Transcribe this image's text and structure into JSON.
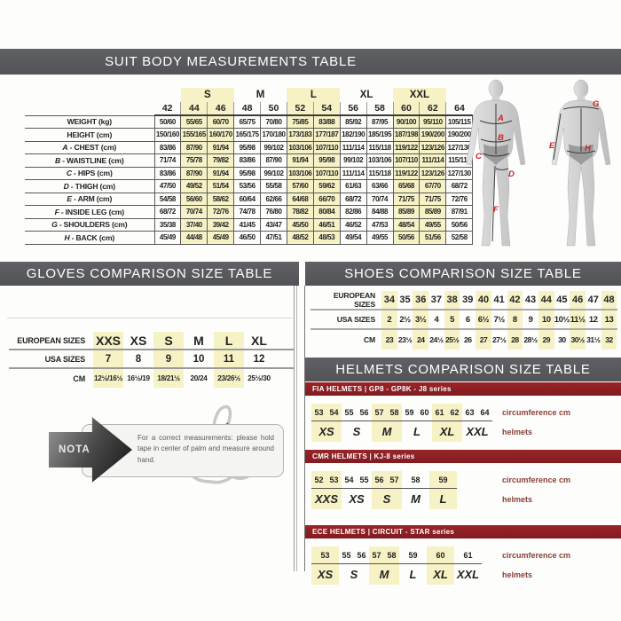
{
  "colors": {
    "header_bar_gray": "#58595b",
    "highlight_yellow": "#f6f2c5",
    "banner_red": "#8e2125",
    "figure_letter_red": "#cc2026",
    "helmet_label_maroon": "#8a4038"
  },
  "suit": {
    "title": "SUIT BODY MEASUREMENTS TABLE",
    "groups": [
      {
        "label": "",
        "span": 1,
        "highlight": false
      },
      {
        "label": "S",
        "span": 2,
        "highlight": true
      },
      {
        "label": "M",
        "span": 2,
        "highlight": false
      },
      {
        "label": "L",
        "span": 2,
        "highlight": true
      },
      {
        "label": "XL",
        "span": 2,
        "highlight": false
      },
      {
        "label": "XXL",
        "span": 2,
        "highlight": true
      },
      {
        "label": "",
        "span": 1,
        "highlight": false
      }
    ],
    "sizes": [
      "42",
      "44",
      "46",
      "48",
      "50",
      "52",
      "54",
      "56",
      "58",
      "60",
      "62",
      "64"
    ],
    "highlight_columns": [
      1,
      2,
      5,
      6,
      9,
      10
    ],
    "rows": [
      {
        "prefix": "",
        "label": "WEIGHT (kg)",
        "values": [
          "50/60",
          "55/65",
          "60/70",
          "65/75",
          "70/80",
          "75/85",
          "83/88",
          "85/92",
          "87/95",
          "90/100",
          "95/110",
          "105/115"
        ]
      },
      {
        "prefix": "",
        "label": "HEIGHT (cm)",
        "values": [
          "150/160",
          "155/165",
          "160/170",
          "165/175",
          "170/180",
          "173/183",
          "177/187",
          "182/190",
          "185/195",
          "187/198",
          "190/200",
          "190/200"
        ]
      },
      {
        "prefix": "A",
        "label": "CHEST (cm)",
        "values": [
          "83/86",
          "87/90",
          "91/94",
          "95/98",
          "99/102",
          "103/106",
          "107/110",
          "111/114",
          "115/118",
          "119/122",
          "123/126",
          "127/130"
        ]
      },
      {
        "prefix": "B",
        "label": "WAISTLINE (cm)",
        "values": [
          "71/74",
          "75/78",
          "79/82",
          "83/86",
          "87/90",
          "91/94",
          "95/98",
          "99/102",
          "103/106",
          "107/110",
          "111/114",
          "115/119"
        ]
      },
      {
        "prefix": "C",
        "label": "HIPS (cm)",
        "values": [
          "83/86",
          "87/90",
          "91/94",
          "95/98",
          "99/102",
          "103/106",
          "107/110",
          "111/114",
          "115/118",
          "119/122",
          "123/126",
          "127/130"
        ]
      },
      {
        "prefix": "D",
        "label": "THIGH (cm)",
        "values": [
          "47/50",
          "49/52",
          "51/54",
          "53/56",
          "55/58",
          "57/60",
          "59/62",
          "61/63",
          "63/66",
          "65/68",
          "67/70",
          "68/72"
        ]
      },
      {
        "prefix": "E",
        "label": "ARM (cm)",
        "values": [
          "54/58",
          "56/60",
          "58/62",
          "60/64",
          "62/66",
          "64/68",
          "66/70",
          "68/72",
          "70/74",
          "71/75",
          "71/75",
          "72/76"
        ]
      },
      {
        "prefix": "F",
        "label": "INSIDE LEG (cm)",
        "values": [
          "68/72",
          "70/74",
          "72/76",
          "74/78",
          "76/80",
          "78/82",
          "80/84",
          "82/86",
          "84/88",
          "85/89",
          "85/89",
          "87/91"
        ]
      },
      {
        "prefix": "G",
        "label": "SHOULDERS (cm)",
        "values": [
          "35/38",
          "37/40",
          "39/42",
          "41/45",
          "43/47",
          "45/50",
          "46/51",
          "46/52",
          "47/53",
          "48/54",
          "49/55",
          "50/56"
        ]
      },
      {
        "prefix": "H",
        "label": "BACK (cm)",
        "values": [
          "45/49",
          "44/48",
          "45/49",
          "46/50",
          "47/51",
          "48/52",
          "48/53",
          "49/54",
          "49/55",
          "50/56",
          "51/56",
          "52/58"
        ]
      }
    ]
  },
  "figures": {
    "letters": {
      "chest": "A",
      "waist": "B",
      "hips": "C",
      "thigh": "D",
      "arm": "E",
      "inside_leg": "F",
      "shoulders": "G",
      "back": "H"
    }
  },
  "gloves": {
    "title": "GLOVES COMPARISON SIZE TABLE",
    "highlight_columns": [
      0,
      2,
      4
    ],
    "rows": [
      {
        "label": "EUROPEAN SIZES",
        "values": [
          "XXS",
          "XS",
          "S",
          "M",
          "L",
          "XL"
        ]
      },
      {
        "label": "USA SIZES",
        "values": [
          "7",
          "8",
          "9",
          "10",
          "11",
          "12"
        ]
      },
      {
        "label": "CM",
        "values": [
          "12½/16½",
          "16½/19",
          "18/21½",
          "20/24",
          "23/26½",
          "25½/30"
        ]
      }
    ]
  },
  "nota": {
    "label": "NOTA",
    "text": "For a correct measurements: please hold tape in center of palm and measure around hand."
  },
  "shoes": {
    "title": "SHOES COMPARISON SIZE TABLE",
    "highlight_columns": [
      0,
      2,
      4,
      6,
      8,
      10,
      12,
      14
    ],
    "rows": [
      {
        "label": "EUROPEAN SIZES",
        "values": [
          "34",
          "35",
          "36",
          "37",
          "38",
          "39",
          "40",
          "41",
          "42",
          "43",
          "44",
          "45",
          "46",
          "47",
          "48"
        ]
      },
      {
        "label": "USA SIZES",
        "values": [
          "2",
          "2½",
          "3½",
          "4",
          "5",
          "6",
          "6½",
          "7½",
          "8",
          "9",
          "10",
          "10½",
          "11½",
          "12",
          "13"
        ]
      },
      {
        "label": "CM",
        "values": [
          "23",
          "23½",
          "24",
          "24½",
          "25½",
          "26",
          "27",
          "27½",
          "28",
          "28½",
          "29",
          "30",
          "30½",
          "31½",
          "32"
        ]
      }
    ]
  },
  "helmets": {
    "title": "HELMETS COMPARISON SIZE TABLE",
    "circumference_label": "circumference cm",
    "helmets_label": "helmets",
    "sections": [
      {
        "series": "FIA HELMETS  |  GP8 - GP8K - J8 series",
        "groups": [
          {
            "numbers": [
              "53",
              "54"
            ],
            "size": "XS",
            "highlight": true
          },
          {
            "numbers": [
              "55",
              "56"
            ],
            "size": "S",
            "highlight": false
          },
          {
            "numbers": [
              "57",
              "58"
            ],
            "size": "M",
            "highlight": true
          },
          {
            "numbers": [
              "59",
              "60"
            ],
            "size": "L",
            "highlight": false
          },
          {
            "numbers": [
              "61",
              "62"
            ],
            "size": "XL",
            "highlight": true
          },
          {
            "numbers": [
              "63",
              "64"
            ],
            "size": "XXL",
            "highlight": false
          }
        ]
      },
      {
        "series": "CMR HELMETS  |  KJ-8 series",
        "groups": [
          {
            "numbers": [
              "52",
              "53"
            ],
            "size": "XXS",
            "highlight": true
          },
          {
            "numbers": [
              "54",
              "55"
            ],
            "size": "XS",
            "highlight": false
          },
          {
            "numbers": [
              "56",
              "57"
            ],
            "size": "S",
            "highlight": true
          },
          {
            "numbers": [
              "58"
            ],
            "size": "M",
            "highlight": false
          },
          {
            "numbers": [
              "59"
            ],
            "size": "L",
            "highlight": true
          }
        ]
      },
      {
        "series": "ECE HELMETS  |  CIRCUIT - STAR series",
        "groups": [
          {
            "numbers": [
              "53"
            ],
            "size": "XS",
            "highlight": true
          },
          {
            "numbers": [
              "55",
              "56"
            ],
            "size": "S",
            "highlight": false
          },
          {
            "numbers": [
              "57",
              "58"
            ],
            "size": "M",
            "highlight": true
          },
          {
            "numbers": [
              "59"
            ],
            "size": "L",
            "highlight": false
          },
          {
            "numbers": [
              "60"
            ],
            "size": "XL",
            "highlight": true
          },
          {
            "numbers": [
              "61"
            ],
            "size": "XXL",
            "highlight": false
          }
        ]
      }
    ]
  }
}
